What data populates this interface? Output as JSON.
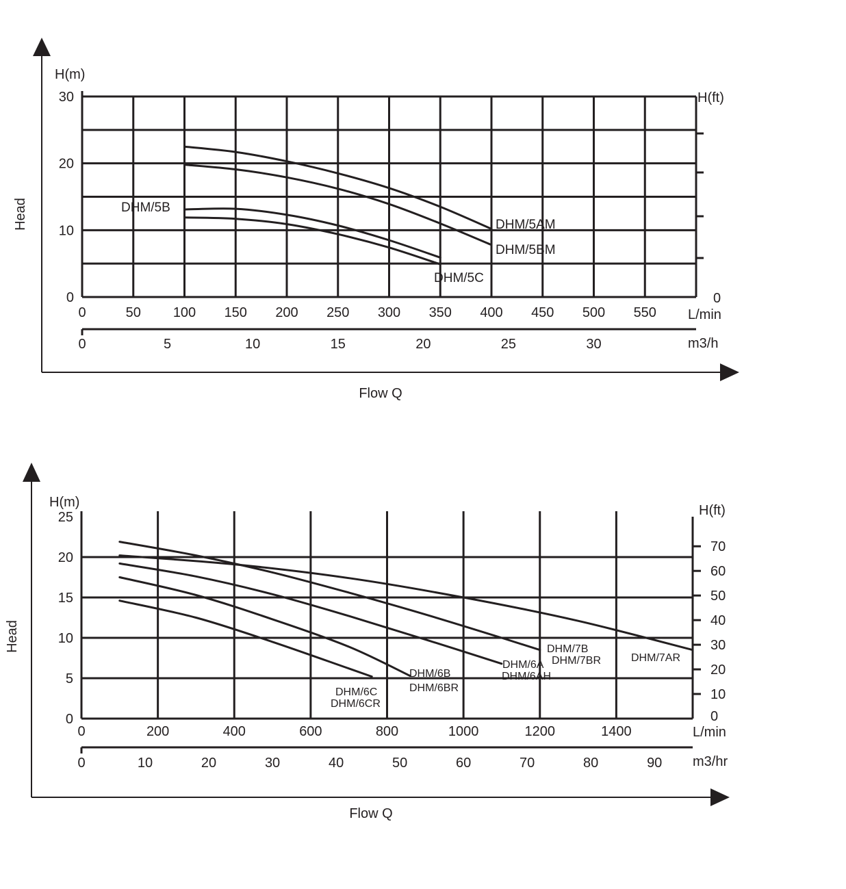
{
  "chart_data": [
    {
      "type": "line",
      "title": "",
      "y_axis_label": "Head",
      "x_axis_label": "Flow Q",
      "y_left_unit": "H(m)",
      "y_right_unit": "H(ft)",
      "x_unit_primary": "L/min",
      "x_unit_secondary": "m3/h",
      "ylim": [
        0,
        30
      ],
      "xlim": [
        0,
        600
      ],
      "y_ticks": [
        "0",
        "10",
        "20",
        "30"
      ],
      "y_right_ticks": [
        "0"
      ],
      "x_ticks": [
        "0",
        "50",
        "100",
        "150",
        "200",
        "250",
        "300",
        "350",
        "400",
        "450",
        "500",
        "550"
      ],
      "x_ticks_secondary": [
        "0",
        "5",
        "10",
        "15",
        "20",
        "25",
        "30"
      ],
      "grid": true,
      "series": [
        {
          "name": "DHM/5AM",
          "x": [
            100,
            150,
            200,
            250,
            300,
            350,
            400
          ],
          "y": [
            22.5,
            21.7,
            20.3,
            18.5,
            16.3,
            13.5,
            10.2
          ]
        },
        {
          "name": "DHM/5BM",
          "x": [
            100,
            150,
            200,
            250,
            300,
            350,
            400
          ],
          "y": [
            19.8,
            19.1,
            17.9,
            16.2,
            13.9,
            11.0,
            7.8
          ]
        },
        {
          "name": "DHM/5B",
          "x": [
            100,
            150,
            200,
            250,
            300,
            350
          ],
          "y": [
            13.1,
            13.2,
            12.3,
            10.7,
            8.5,
            5.9
          ]
        },
        {
          "name": "DHM/5C",
          "x": [
            100,
            150,
            200,
            250,
            300,
            350
          ],
          "y": [
            11.9,
            11.7,
            10.9,
            9.4,
            7.4,
            4.9
          ]
        }
      ]
    },
    {
      "type": "line",
      "title": "",
      "y_axis_label": "Head",
      "x_axis_label": "Flow Q",
      "y_left_unit": "H(m)",
      "y_right_unit": "H(ft)",
      "x_unit_primary": "L/min",
      "x_unit_secondary": "m3/hr",
      "ylim": [
        0,
        25
      ],
      "xlim": [
        0,
        1600
      ],
      "y_ticks": [
        "0",
        "5",
        "10",
        "15",
        "20",
        "25"
      ],
      "y_right_ticks": [
        "0",
        "10",
        "20",
        "30",
        "40",
        "50",
        "60",
        "70"
      ],
      "x_ticks": [
        "0",
        "200",
        "400",
        "600",
        "800",
        "1000",
        "1200",
        "1400"
      ],
      "x_ticks_secondary": [
        "0",
        "10",
        "20",
        "30",
        "40",
        "50",
        "60",
        "70",
        "80",
        "90"
      ],
      "grid": true,
      "series": [
        {
          "name": "DHM/7AR",
          "x": [
            100,
            400,
            700,
            1000,
            1300,
            1600
          ],
          "y": [
            20.2,
            19.1,
            17.4,
            15.0,
            12.1,
            8.5
          ]
        },
        {
          "name": "DHM/7B DHM/7BR",
          "x": [
            100,
            300,
            500,
            700,
            900,
            1100,
            1200
          ],
          "y": [
            21.9,
            20.2,
            18.1,
            15.6,
            12.9,
            10.0,
            8.5
          ]
        },
        {
          "name": "DHM/6A DHM/6AH",
          "x": [
            100,
            300,
            500,
            700,
            900,
            1100
          ],
          "y": [
            19.2,
            17.6,
            15.4,
            12.7,
            9.8,
            6.8
          ]
        },
        {
          "name": "DHM/6B DHM/6BR",
          "x": [
            100,
            300,
            500,
            700,
            860
          ],
          "y": [
            17.5,
            15.3,
            12.3,
            8.9,
            5.3
          ]
        },
        {
          "name": "DHM/6C DHM/6CR",
          "x": [
            100,
            300,
            500,
            700,
            760
          ],
          "y": [
            14.6,
            12.5,
            9.5,
            6.2,
            5.2
          ]
        }
      ]
    }
  ],
  "labels": {
    "c1_5b": "DHM/5B",
    "c1_5am": "DHM/5AM",
    "c1_5bm": "DHM/5BM",
    "c1_5c": "DHM/5C",
    "c2_6c": "DHM/6C",
    "c2_6cr": "DHM/6CR",
    "c2_6b": "DHM/6B",
    "c2_6br": "DHM/6BR",
    "c2_6a": "DHM/6A",
    "c2_6ah": "DHM/6AH",
    "c2_7b": "DHM/7B",
    "c2_7br": "DHM/7BR",
    "c2_7ar": "DHM/7AR"
  }
}
